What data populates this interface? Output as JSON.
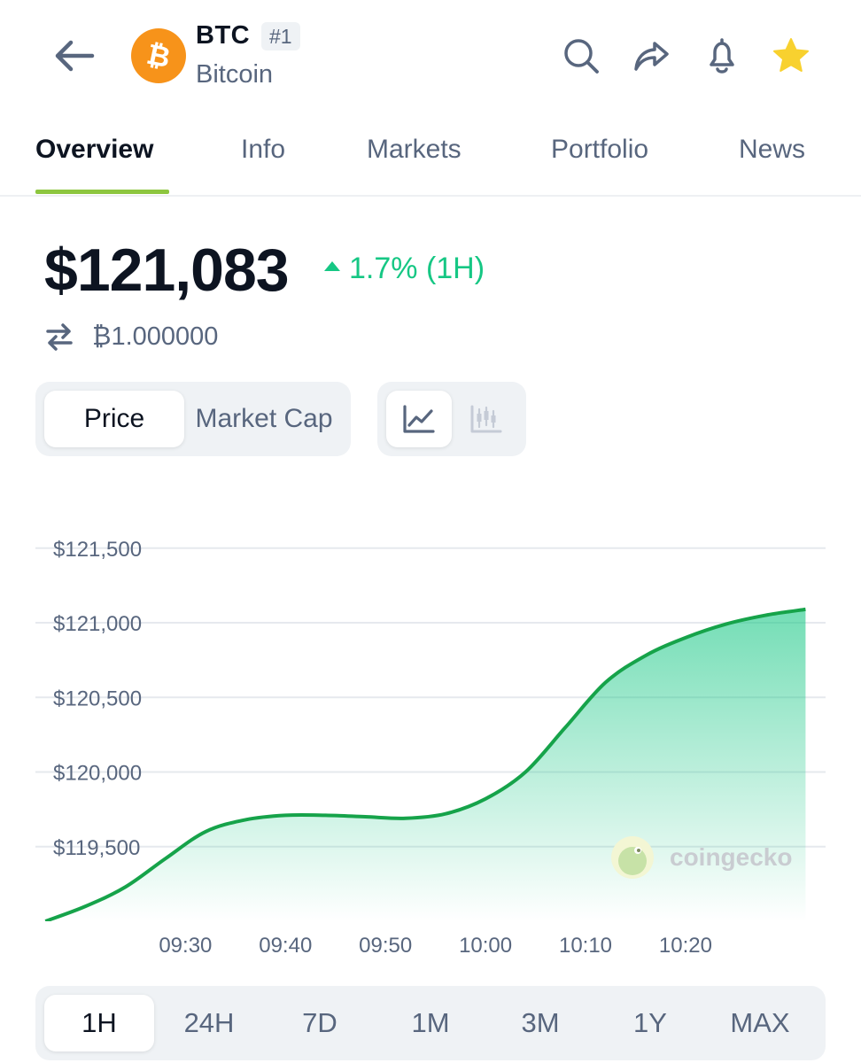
{
  "header": {
    "symbol": "BTC",
    "rank": "#1",
    "name": "Bitcoin",
    "coin_logo_glyph": "₿",
    "icons": [
      "back-arrow-icon",
      "search-icon",
      "share-icon",
      "bell-icon",
      "star-icon"
    ],
    "favorite_color": "#f8d12f"
  },
  "tabs": [
    {
      "label": "Overview",
      "active": true
    },
    {
      "label": "Info"
    },
    {
      "label": "Markets"
    },
    {
      "label": "Portfolio"
    },
    {
      "label": "News"
    }
  ],
  "price": {
    "value": "$121,083",
    "change": "1.7% (1H)",
    "btc_value": "₿1.000000",
    "change_color": "#16c784"
  },
  "toggles": {
    "metric": [
      "Price",
      "Market Cap"
    ],
    "metric_selected": "Price",
    "chart_type_icons": [
      "line-chart-icon",
      "candlestick-chart-icon"
    ],
    "chart_type_selected": "line-chart-icon"
  },
  "chart_data": {
    "type": "area",
    "x_tick_labels": [
      "09:30",
      "09:40",
      "09:50",
      "10:00",
      "10:10",
      "10:20"
    ],
    "y_tick_labels": [
      "$121,500",
      "$121,000",
      "$120,500",
      "$120,000",
      "$119,500"
    ],
    "y_ticks": [
      121500,
      121000,
      120500,
      120000,
      119500
    ],
    "ylim": [
      119000,
      121730
    ],
    "x_minutes": [
      -14,
      -10,
      -6,
      -2,
      2,
      6,
      10,
      14,
      18,
      22,
      26,
      30,
      34,
      38,
      42,
      46,
      50,
      54,
      58,
      62
    ],
    "x_start_label": "09:30",
    "values": [
      119000,
      119100,
      119230,
      119420,
      119600,
      119680,
      119710,
      119710,
      119700,
      119690,
      119720,
      119820,
      120000,
      120300,
      120600,
      120780,
      120900,
      120990,
      121050,
      121090
    ],
    "xlim_minutes": [
      -15,
      64
    ],
    "line_color": "#16a34a",
    "grid": true,
    "watermark": "coingecko"
  },
  "timeframes": [
    "1H",
    "24H",
    "7D",
    "1M",
    "3M",
    "1Y",
    "MAX"
  ],
  "timeframe_selected": "1H"
}
